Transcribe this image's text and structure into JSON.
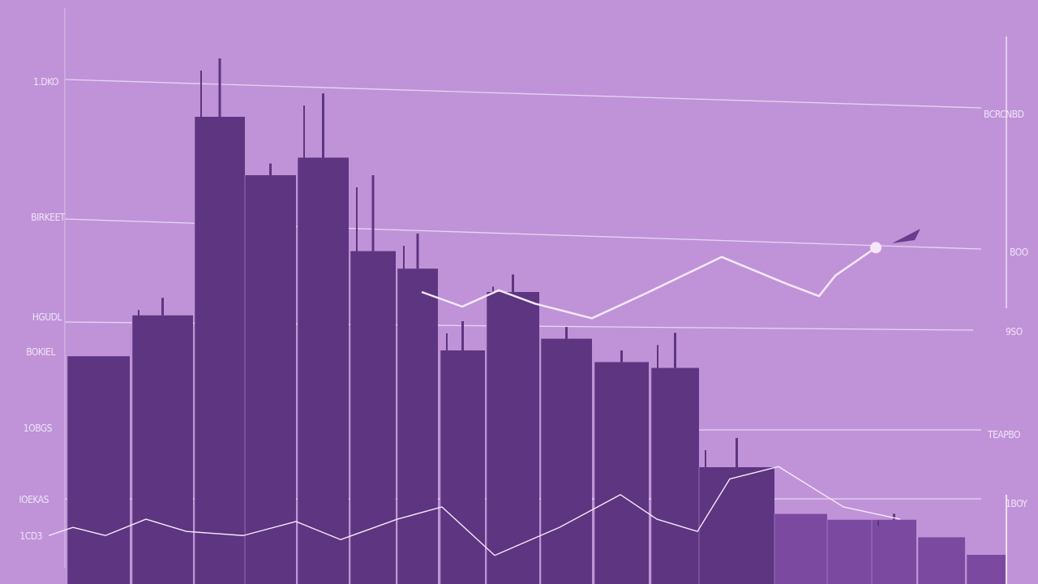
{
  "chart_data": {
    "type": "bar",
    "title": "",
    "xlabel": "",
    "ylabel": "",
    "ylim": [
      0,
      100
    ],
    "grid": true,
    "left_tick_labels": [
      "1.DKO",
      "BIRKEET",
      "HGUDL",
      "BOKIEL",
      "1OBGS",
      "IOEKAS",
      "1CD3"
    ],
    "right_tick_labels": [
      "BCRCNBD",
      "BOO",
      "9SO",
      "TEAPBO",
      "1BOY"
    ],
    "bars": {
      "values": [
        39,
        46,
        80,
        70,
        73,
        57,
        54,
        40,
        50,
        42,
        38,
        37,
        20,
        12,
        11,
        11,
        8,
        5
      ],
      "spikes": [
        null,
        49,
        90,
        72,
        84,
        70,
        60,
        45,
        53,
        44,
        40,
        43,
        25,
        null,
        null,
        12,
        null,
        null
      ]
    },
    "series": [
      {
        "values": [
          [
            520,
            50
          ],
          [
            570,
            47.5
          ],
          [
            615,
            50.3
          ],
          [
            660,
            48
          ],
          [
            730,
            45.5
          ],
          [
            800,
            50
          ],
          [
            890,
            56
          ],
          [
            970,
            51.4
          ],
          [
            1010,
            49.3
          ],
          [
            1030,
            52.8
          ],
          [
            1080,
            57.6
          ]
        ]
      },
      {
        "values": [
          [
            60,
            8.3
          ],
          [
            90,
            9.7
          ],
          [
            130,
            8.3
          ],
          [
            180,
            11.1
          ],
          [
            230,
            9
          ],
          [
            300,
            8.3
          ],
          [
            365,
            10.7
          ],
          [
            420,
            7.6
          ],
          [
            490,
            11.1
          ],
          [
            545,
            13.2
          ],
          [
            610,
            4.9
          ],
          [
            690,
            9.7
          ],
          [
            765,
            15.3
          ],
          [
            810,
            11.1
          ],
          [
            860,
            9
          ],
          [
            900,
            18
          ],
          [
            960,
            20.1
          ],
          [
            1040,
            13.2
          ],
          [
            1110,
            11.1
          ]
        ]
      }
    ],
    "colors": {
      "background": "#c093d8",
      "bar": "#5e3580",
      "bar_light": "#7b4aa0",
      "line": "#f4e8fa"
    }
  }
}
